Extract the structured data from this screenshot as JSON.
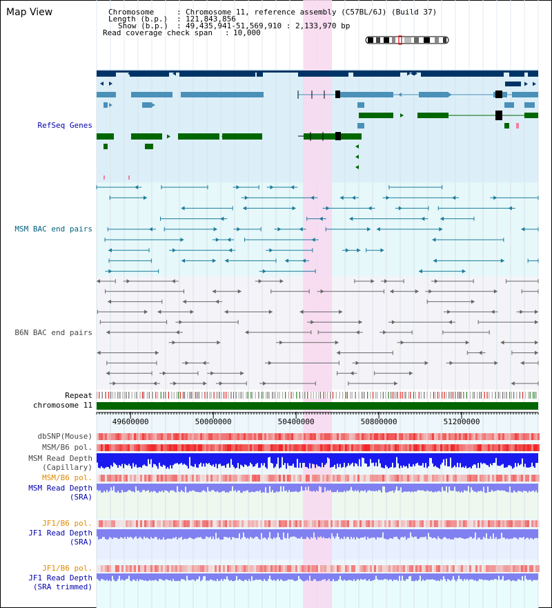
{
  "header": {
    "title": "Map View",
    "info": {
      "chromosome_label": "Chromosome",
      "chromosome_value": "Chromosome 11, reference assembly (C57BL/6J) (Build 37)",
      "length_label": "Length (b.p.)",
      "length_value": "121,843,856",
      "show_label": "Show (b.p.)",
      "show_value": "49,435,941-51,569,910 : 2,133,970 bp",
      "coverage_label": "Read coverage check span",
      "coverage_value": "10,000"
    }
  },
  "tracks": {
    "refseq": "RefSeq Genes",
    "msm_bac": "MSM BAC end pairs",
    "b6n_bac": "B6N BAC end pairs",
    "repeat": "Repeat",
    "chromosome": "chromosome 11",
    "dbsnp": "dbSNP(Mouse)",
    "msm_b6_pol_1": "MSM/B6 pol.",
    "msm_depth_cap_1": "MSM Read Depth",
    "msm_depth_cap_2": "(Capillary)",
    "msm_b6_pol_2": "MSM/B6 pol.",
    "msm_depth_sra_1": "MSM Read Depth",
    "msm_depth_sra_2": "(SRA)",
    "jf1_pol_1": "JF1/B6 pol.",
    "jf1_depth_1": "JF1 Read Depth",
    "jf1_depth_1b": "(SRA)",
    "jf1_pol_2": "JF1/B6 pol.",
    "jf1_depth_2": "JF1 Read Depth",
    "jf1_depth_2b": "(SRA trimmed)"
  },
  "axis": {
    "ticks": [
      "49600000",
      "50000000",
      "50400000",
      "50800000",
      "51200000"
    ],
    "tick_values": [
      49600000,
      50000000,
      50400000,
      50800000,
      51200000
    ],
    "range": [
      49435941,
      51569910
    ]
  },
  "colors": {
    "highlight": "#f8d8f0",
    "gene_dark": "#003366",
    "gene_mid": "#4a90b8",
    "gene_green": "#006600",
    "msm_bac": "#1a7a9a",
    "b6n_bac": "#666666",
    "chromosome": "#006600",
    "depth_blue": "#1a1aee",
    "depth_light": "#8080f0",
    "pol_red": "#ee3333"
  }
}
